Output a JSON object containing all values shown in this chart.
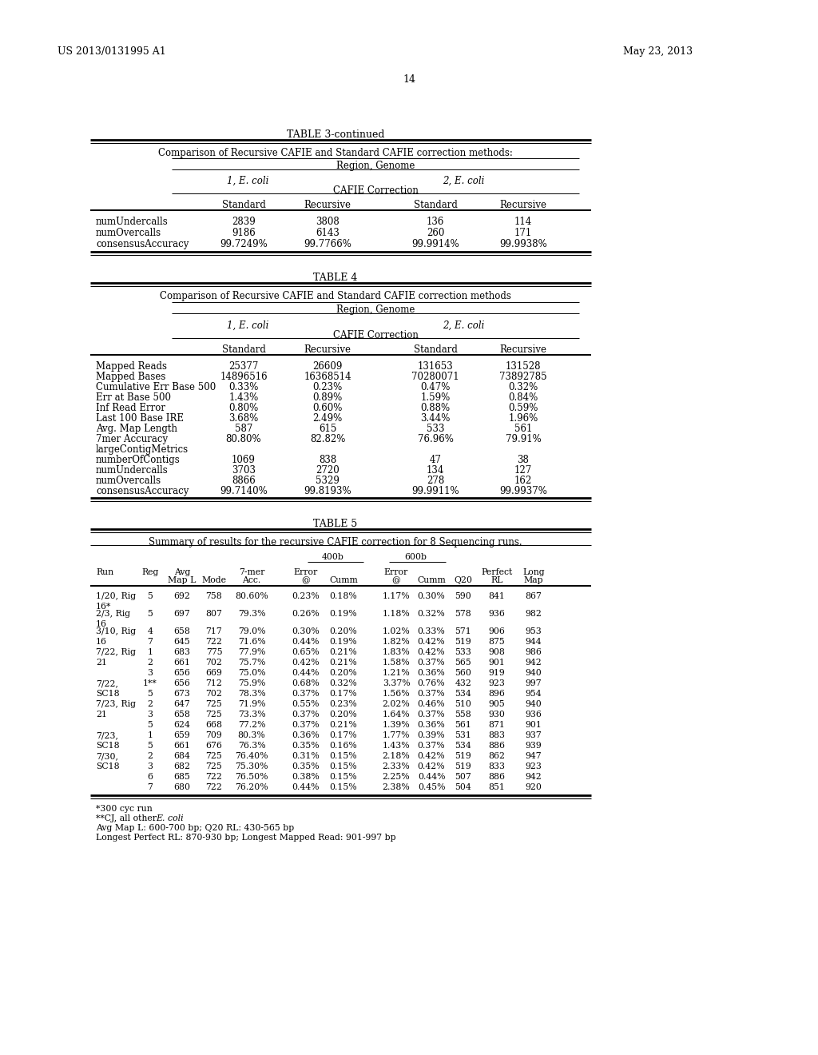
{
  "page_number": "14",
  "header_left": "US 2013/0131995 A1",
  "header_right": "May 23, 2013",
  "table3_title": "TABLE 3-continued",
  "table3_subtitle": "Comparison of Recursive CAFIE and Standard CAFIE correction methods:",
  "table3_region_label": "Region, Genome",
  "table3_ecoli1": "1, E. coli",
  "table3_ecoli2": "2, E. coli",
  "table3_cafie_label": "CAFIE Correction",
  "table3_col_headers": [
    "Standard",
    "Recursive",
    "Standard",
    "Recursive"
  ],
  "table3_rows": [
    [
      "numUndercalls",
      "2839",
      "3808",
      "136",
      "114"
    ],
    [
      "numOvercalls",
      "9186",
      "6143",
      "260",
      "171"
    ],
    [
      "consensusAccuracy",
      "99.7249%",
      "99.7766%",
      "99.9914%",
      "99.9938%"
    ]
  ],
  "table4_title": "TABLE 4",
  "table4_subtitle": "Comparison of Recursive CAFIE and Standard CAFIE correction methods",
  "table4_region_label": "Region, Genome",
  "table4_ecoli1": "1, E. coli",
  "table4_ecoli2": "2, E. coli",
  "table4_cafie_label": "CAFIE Correction",
  "table4_col_headers": [
    "Standard",
    "Recursive",
    "Standard",
    "Recursive"
  ],
  "table4_rows": [
    [
      "Mapped Reads",
      "25377",
      "26609",
      "131653",
      "131528"
    ],
    [
      "Mapped Bases",
      "14896516",
      "16368514",
      "70280071",
      "73892785"
    ],
    [
      "Cumulative Err Base 500",
      "0.33%",
      "0.23%",
      "0.47%",
      "0.32%"
    ],
    [
      "Err at Base 500",
      "1.43%",
      "0.89%",
      "1.59%",
      "0.84%"
    ],
    [
      "Inf Read Error",
      "0.80%",
      "0.60%",
      "0.88%",
      "0.59%"
    ],
    [
      "Last 100 Base IRE",
      "3.68%",
      "2.49%",
      "3.44%",
      "1.96%"
    ],
    [
      "Avg. Map Length",
      "587",
      "615",
      "533",
      "561"
    ],
    [
      "7mer Accuracy",
      "80.80%",
      "82.82%",
      "76.96%",
      "79.91%"
    ],
    [
      "largeContigMetrics",
      "",
      "",
      "",
      ""
    ],
    [
      "numberOfContigs",
      "1069",
      "838",
      "47",
      "38"
    ],
    [
      "numUndercalls",
      "3703",
      "2720",
      "134",
      "127"
    ],
    [
      "numOvercalls",
      "8866",
      "5329",
      "278",
      "162"
    ],
    [
      "consensusAccuracy",
      "99.7140%",
      "99.8193%",
      "99.9911%",
      "99.9937%"
    ]
  ],
  "table5_title": "TABLE 5",
  "table5_subtitle": "Summary of results for the recursive CAFIE correction for 8 Sequencing runs.",
  "table5_group1": "400b",
  "table5_group2": "600b",
  "table5_rows": [
    [
      "1/20, Rig",
      "5",
      "692",
      "758",
      "80.60%",
      "0.23%",
      "0.18%",
      "1.17%",
      "0.30%",
      "590",
      "841",
      "867"
    ],
    [
      "16*",
      "",
      "",
      "",
      "",
      "",
      "",
      "",
      "",
      "",
      "",
      ""
    ],
    [
      "2/3, Rig",
      "5",
      "697",
      "807",
      "79.3%",
      "0.26%",
      "0.19%",
      "1.18%",
      "0.32%",
      "578",
      "936",
      "982"
    ],
    [
      "16",
      "",
      "",
      "",
      "",
      "",
      "",
      "",
      "",
      "",
      "",
      ""
    ],
    [
      "3/10, Rig",
      "4",
      "658",
      "717",
      "79.0%",
      "0.30%",
      "0.20%",
      "1.02%",
      "0.33%",
      "571",
      "906",
      "953"
    ],
    [
      "16",
      "7",
      "645",
      "722",
      "71.6%",
      "0.44%",
      "0.19%",
      "1.82%",
      "0.42%",
      "519",
      "875",
      "944"
    ],
    [
      "7/22, Rig",
      "1",
      "683",
      "775",
      "77.9%",
      "0.65%",
      "0.21%",
      "1.83%",
      "0.42%",
      "533",
      "908",
      "986"
    ],
    [
      "21",
      "2",
      "661",
      "702",
      "75.7%",
      "0.42%",
      "0.21%",
      "1.58%",
      "0.37%",
      "565",
      "901",
      "942"
    ],
    [
      "",
      "3",
      "656",
      "669",
      "75.0%",
      "0.44%",
      "0.20%",
      "1.21%",
      "0.36%",
      "560",
      "919",
      "940"
    ],
    [
      "7/22,",
      "1**",
      "656",
      "712",
      "75.9%",
      "0.68%",
      "0.32%",
      "3.37%",
      "0.76%",
      "432",
      "923",
      "997"
    ],
    [
      "SC18",
      "5",
      "673",
      "702",
      "78.3%",
      "0.37%",
      "0.17%",
      "1.56%",
      "0.37%",
      "534",
      "896",
      "954"
    ],
    [
      "7/23, Rig",
      "2",
      "647",
      "725",
      "71.9%",
      "0.55%",
      "0.23%",
      "2.02%",
      "0.46%",
      "510",
      "905",
      "940"
    ],
    [
      "21",
      "3",
      "658",
      "725",
      "73.3%",
      "0.37%",
      "0.20%",
      "1.64%",
      "0.37%",
      "558",
      "930",
      "936"
    ],
    [
      "",
      "5",
      "624",
      "668",
      "77.2%",
      "0.37%",
      "0.21%",
      "1.39%",
      "0.36%",
      "561",
      "871",
      "901"
    ],
    [
      "7/23,",
      "1",
      "659",
      "709",
      "80.3%",
      "0.36%",
      "0.17%",
      "1.77%",
      "0.39%",
      "531",
      "883",
      "937"
    ],
    [
      "SC18",
      "5",
      "661",
      "676",
      "76.3%",
      "0.35%",
      "0.16%",
      "1.43%",
      "0.37%",
      "534",
      "886",
      "939"
    ],
    [
      "7/30,",
      "2",
      "684",
      "725",
      "76.40%",
      "0.31%",
      "0.15%",
      "2.18%",
      "0.42%",
      "519",
      "862",
      "947"
    ],
    [
      "SC18",
      "3",
      "682",
      "725",
      "75.30%",
      "0.35%",
      "0.15%",
      "2.33%",
      "0.42%",
      "519",
      "833",
      "923"
    ],
    [
      "",
      "6",
      "685",
      "722",
      "76.50%",
      "0.38%",
      "0.15%",
      "2.25%",
      "0.44%",
      "507",
      "886",
      "942"
    ],
    [
      "",
      "7",
      "680",
      "722",
      "76.20%",
      "0.44%",
      "0.15%",
      "2.38%",
      "0.45%",
      "504",
      "851",
      "920"
    ]
  ],
  "table5_footnotes": [
    "*300 cyc run",
    "**CJ, all other E. coli",
    "Avg Map L: 600-700 bp; Q20 RL: 430-565 bp",
    "Longest Perfect RL: 870-930 bp; Longest Mapped Read: 901-997 bp"
  ]
}
